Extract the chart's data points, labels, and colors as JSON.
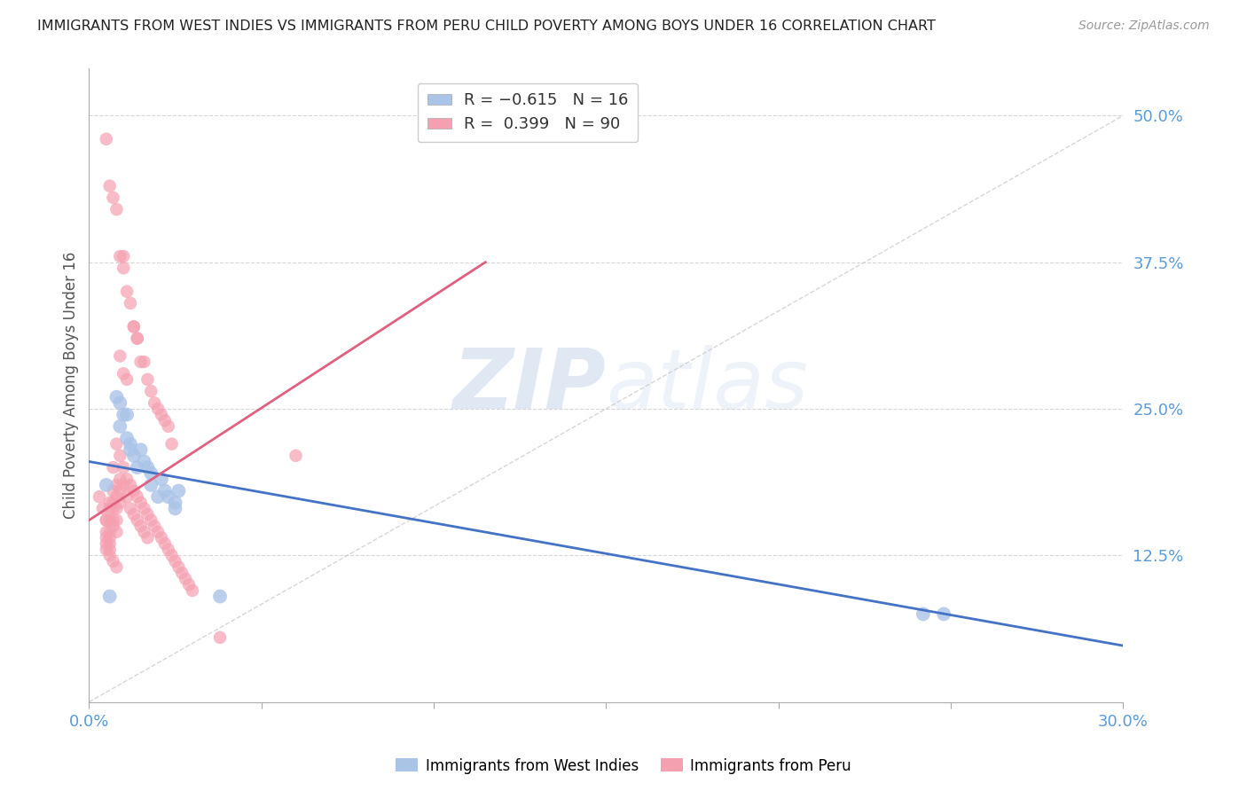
{
  "title": "IMMIGRANTS FROM WEST INDIES VS IMMIGRANTS FROM PERU CHILD POVERTY AMONG BOYS UNDER 16 CORRELATION CHART",
  "source": "Source: ZipAtlas.com",
  "ylabel": "Child Poverty Among Boys Under 16",
  "ytick_values": [
    0,
    0.125,
    0.25,
    0.375,
    0.5
  ],
  "ytick_labels": [
    "",
    "12.5%",
    "25.0%",
    "37.5%",
    "50.0%"
  ],
  "xlim": [
    0,
    0.3
  ],
  "ylim": [
    0,
    0.54
  ],
  "watermark_zip": "ZIP",
  "watermark_atlas": "atlas",
  "west_indies_color": "#aac4e8",
  "peru_color": "#f5a0b0",
  "title_color": "#222222",
  "axis_label_color": "#5b9bd5",
  "grid_color": "#cccccc",
  "diagonal_color": "#cccccc",
  "trend_blue_color": "#4472c4",
  "trend_pink_color": "#e06080",
  "wi_line_x": [
    0.0,
    0.3
  ],
  "wi_line_y": [
    0.205,
    0.048
  ],
  "peru_line_x": [
    0.0,
    0.115
  ],
  "peru_line_y": [
    0.155,
    0.375
  ],
  "west_indies_data": [
    [
      0.008,
      0.26
    ],
    [
      0.009,
      0.255
    ],
    [
      0.009,
      0.235
    ],
    [
      0.01,
      0.245
    ],
    [
      0.011,
      0.245
    ],
    [
      0.011,
      0.225
    ],
    [
      0.012,
      0.22
    ],
    [
      0.012,
      0.215
    ],
    [
      0.013,
      0.21
    ],
    [
      0.014,
      0.2
    ],
    [
      0.015,
      0.215
    ],
    [
      0.016,
      0.205
    ],
    [
      0.017,
      0.2
    ],
    [
      0.018,
      0.195
    ],
    [
      0.018,
      0.185
    ],
    [
      0.02,
      0.175
    ],
    [
      0.021,
      0.19
    ],
    [
      0.022,
      0.18
    ],
    [
      0.023,
      0.175
    ],
    [
      0.025,
      0.17
    ],
    [
      0.025,
      0.165
    ],
    [
      0.026,
      0.18
    ],
    [
      0.005,
      0.185
    ],
    [
      0.006,
      0.09
    ],
    [
      0.038,
      0.09
    ],
    [
      0.242,
      0.075
    ],
    [
      0.248,
      0.075
    ]
  ],
  "peru_data": [
    [
      0.005,
      0.48
    ],
    [
      0.006,
      0.44
    ],
    [
      0.007,
      0.43
    ],
    [
      0.008,
      0.42
    ],
    [
      0.009,
      0.38
    ],
    [
      0.01,
      0.38
    ],
    [
      0.01,
      0.37
    ],
    [
      0.011,
      0.35
    ],
    [
      0.012,
      0.34
    ],
    [
      0.013,
      0.32
    ],
    [
      0.014,
      0.31
    ],
    [
      0.009,
      0.295
    ],
    [
      0.01,
      0.28
    ],
    [
      0.011,
      0.275
    ],
    [
      0.013,
      0.32
    ],
    [
      0.014,
      0.31
    ],
    [
      0.015,
      0.29
    ],
    [
      0.016,
      0.29
    ],
    [
      0.017,
      0.275
    ],
    [
      0.018,
      0.265
    ],
    [
      0.019,
      0.255
    ],
    [
      0.02,
      0.25
    ],
    [
      0.021,
      0.245
    ],
    [
      0.022,
      0.24
    ],
    [
      0.023,
      0.235
    ],
    [
      0.024,
      0.22
    ],
    [
      0.06,
      0.21
    ],
    [
      0.007,
      0.2
    ],
    [
      0.008,
      0.22
    ],
    [
      0.009,
      0.21
    ],
    [
      0.01,
      0.2
    ],
    [
      0.011,
      0.19
    ],
    [
      0.012,
      0.185
    ],
    [
      0.013,
      0.18
    ],
    [
      0.014,
      0.175
    ],
    [
      0.015,
      0.17
    ],
    [
      0.016,
      0.165
    ],
    [
      0.017,
      0.16
    ],
    [
      0.018,
      0.155
    ],
    [
      0.019,
      0.15
    ],
    [
      0.02,
      0.145
    ],
    [
      0.021,
      0.14
    ],
    [
      0.022,
      0.135
    ],
    [
      0.023,
      0.13
    ],
    [
      0.024,
      0.125
    ],
    [
      0.025,
      0.12
    ],
    [
      0.026,
      0.115
    ],
    [
      0.027,
      0.11
    ],
    [
      0.028,
      0.105
    ],
    [
      0.029,
      0.1
    ],
    [
      0.03,
      0.095
    ],
    [
      0.003,
      0.175
    ],
    [
      0.004,
      0.165
    ],
    [
      0.005,
      0.155
    ],
    [
      0.005,
      0.155
    ],
    [
      0.005,
      0.145
    ],
    [
      0.005,
      0.14
    ],
    [
      0.005,
      0.135
    ],
    [
      0.005,
      0.13
    ],
    [
      0.006,
      0.17
    ],
    [
      0.006,
      0.165
    ],
    [
      0.006,
      0.155
    ],
    [
      0.006,
      0.145
    ],
    [
      0.006,
      0.14
    ],
    [
      0.006,
      0.135
    ],
    [
      0.006,
      0.13
    ],
    [
      0.007,
      0.18
    ],
    [
      0.007,
      0.17
    ],
    [
      0.007,
      0.165
    ],
    [
      0.007,
      0.155
    ],
    [
      0.007,
      0.15
    ],
    [
      0.008,
      0.185
    ],
    [
      0.008,
      0.175
    ],
    [
      0.008,
      0.165
    ],
    [
      0.008,
      0.155
    ],
    [
      0.008,
      0.145
    ],
    [
      0.009,
      0.19
    ],
    [
      0.009,
      0.18
    ],
    [
      0.009,
      0.17
    ],
    [
      0.01,
      0.185
    ],
    [
      0.011,
      0.175
    ],
    [
      0.012,
      0.165
    ],
    [
      0.013,
      0.16
    ],
    [
      0.014,
      0.155
    ],
    [
      0.015,
      0.15
    ],
    [
      0.016,
      0.145
    ],
    [
      0.017,
      0.14
    ],
    [
      0.006,
      0.125
    ],
    [
      0.007,
      0.12
    ],
    [
      0.008,
      0.115
    ],
    [
      0.038,
      0.055
    ]
  ]
}
